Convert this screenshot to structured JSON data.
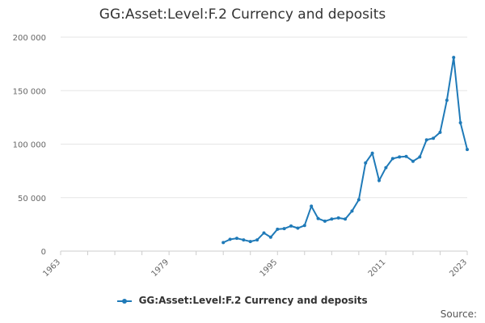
{
  "chart_data": {
    "type": "line",
    "title": "GG:Asset:Level:F.2 Currency and deposits",
    "xlabel": "",
    "ylabel": "",
    "xlim": [
      1963,
      2023
    ],
    "ylim": [
      0,
      200000
    ],
    "yticks": [
      0,
      50000,
      100000,
      150000,
      200000
    ],
    "ytick_labels": [
      "0",
      "50 000",
      "100 000",
      "150 000",
      "200 000"
    ],
    "xticks": [
      1963,
      1979,
      1995,
      2011,
      2023
    ],
    "xtick_labels": [
      "1963",
      "1979",
      "1995",
      "2011",
      "2023"
    ],
    "grid": true,
    "legend_position": "bottom",
    "series": [
      {
        "name": "GG:Asset:Level:F.2 Currency and deposits",
        "color": "#1f7ab8",
        "x": [
          1987,
          1988,
          1989,
          1990,
          1991,
          1992,
          1993,
          1994,
          1995,
          1996,
          1997,
          1998,
          1999,
          2000,
          2001,
          2002,
          2003,
          2004,
          2005,
          2006,
          2007,
          2008,
          2009,
          2010,
          2011,
          2012,
          2013,
          2014,
          2015,
          2016,
          2017,
          2018,
          2019,
          2020,
          2021,
          2022,
          2023
        ],
        "y": [
          8000,
          11000,
          12000,
          10500,
          9000,
          10500,
          17000,
          13000,
          20500,
          21000,
          23500,
          21500,
          24000,
          42000,
          30500,
          28000,
          30000,
          31000,
          30000,
          37500,
          48000,
          82500,
          91500,
          66000,
          78000,
          86500,
          88000,
          88500,
          84000,
          88000,
          104000,
          105500,
          111000,
          141000,
          181000,
          120000,
          95000
        ]
      }
    ]
  },
  "legend": {
    "label": "GG:Asset:Level:F.2 Currency and deposits"
  },
  "source_label": "Source:"
}
